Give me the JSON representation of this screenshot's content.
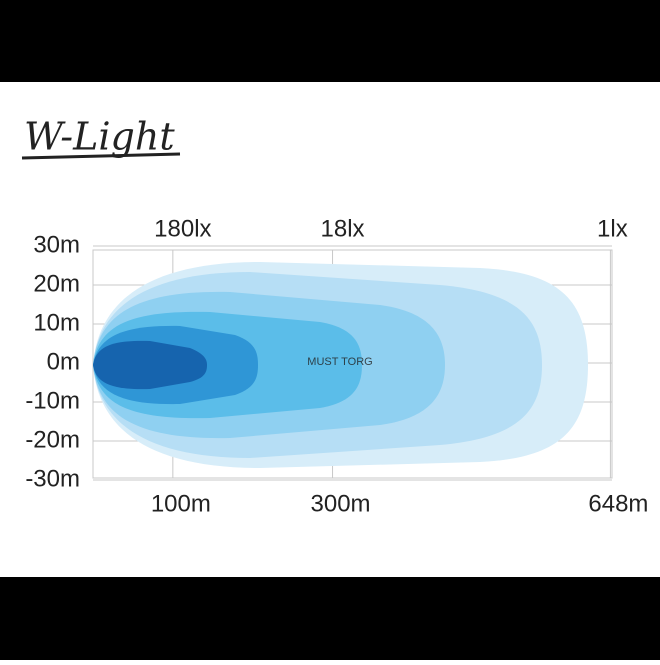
{
  "chart_data": {
    "type": "beam",
    "title": "W-Light",
    "annotations": [
      "180lx",
      "18lx",
      "1lx"
    ],
    "watermark": "MUST TORG",
    "xlim": [
      0,
      650
    ],
    "xticks": [
      {
        "value": 100,
        "label": "100m"
      },
      {
        "value": 300,
        "label": "300m"
      },
      {
        "value": 648,
        "label": "648m"
      }
    ],
    "ylim": [
      -30,
      30
    ],
    "yticks": [
      {
        "value": 30,
        "label": "30m"
      },
      {
        "value": 20,
        "label": "20m"
      },
      {
        "value": 10,
        "label": "10m"
      },
      {
        "value": 0,
        "label": "0m"
      },
      {
        "value": -10,
        "label": "-10m"
      },
      {
        "value": -20,
        "label": "-20m"
      },
      {
        "value": -30,
        "label": "-30m"
      }
    ],
    "grid": true
  }
}
